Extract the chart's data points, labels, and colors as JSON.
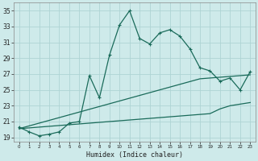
{
  "xlabel": "Humidex (Indice chaleur)",
  "background_color": "#ceeaea",
  "line_color": "#1a6b5a",
  "grid_color": "#aed4d4",
  "x_values": [
    0,
    1,
    2,
    3,
    4,
    5,
    6,
    7,
    8,
    9,
    10,
    11,
    12,
    13,
    14,
    15,
    16,
    17,
    18,
    19,
    20,
    21,
    22,
    23
  ],
  "y_main": [
    20.3,
    19.7,
    19.2,
    19.4,
    19.7,
    20.8,
    21.0,
    26.8,
    24.0,
    29.4,
    33.2,
    35.0,
    31.5,
    30.8,
    32.2,
    32.6,
    31.8,
    30.2,
    27.8,
    27.4,
    26.1,
    26.5,
    25.0,
    27.3
  ],
  "y_linear1": [
    20.1,
    20.45,
    20.8,
    21.15,
    21.5,
    21.85,
    22.2,
    22.55,
    22.9,
    23.25,
    23.6,
    23.95,
    24.3,
    24.65,
    25.0,
    25.35,
    25.7,
    26.05,
    26.4,
    26.5,
    26.6,
    26.7,
    26.8,
    26.9
  ],
  "y_linear2": [
    20.1,
    20.2,
    20.3,
    20.4,
    20.5,
    20.6,
    20.7,
    20.8,
    20.9,
    21.0,
    21.1,
    21.2,
    21.3,
    21.4,
    21.5,
    21.6,
    21.7,
    21.8,
    21.9,
    22.0,
    22.6,
    23.0,
    23.2,
    23.4
  ],
  "ylim": [
    18.5,
    36.0
  ],
  "xlim": [
    -0.5,
    23.5
  ],
  "yticks": [
    19,
    21,
    23,
    25,
    27,
    29,
    31,
    33,
    35
  ],
  "x_values_int": [
    0,
    1,
    2,
    3,
    4,
    5,
    6,
    7,
    8,
    9,
    10,
    11,
    12,
    13,
    14,
    15,
    16,
    17,
    18,
    19,
    20,
    21,
    22,
    23
  ],
  "xtick_labels": [
    "0",
    "1",
    "2",
    "3",
    "4",
    "5",
    "6",
    "7",
    "8",
    "9",
    "10",
    "11",
    "12",
    "13",
    "14",
    "15",
    "16",
    "17",
    "18",
    "19",
    "20",
    "21",
    "22",
    "23"
  ],
  "markersize": 2.5,
  "linewidth": 0.9
}
